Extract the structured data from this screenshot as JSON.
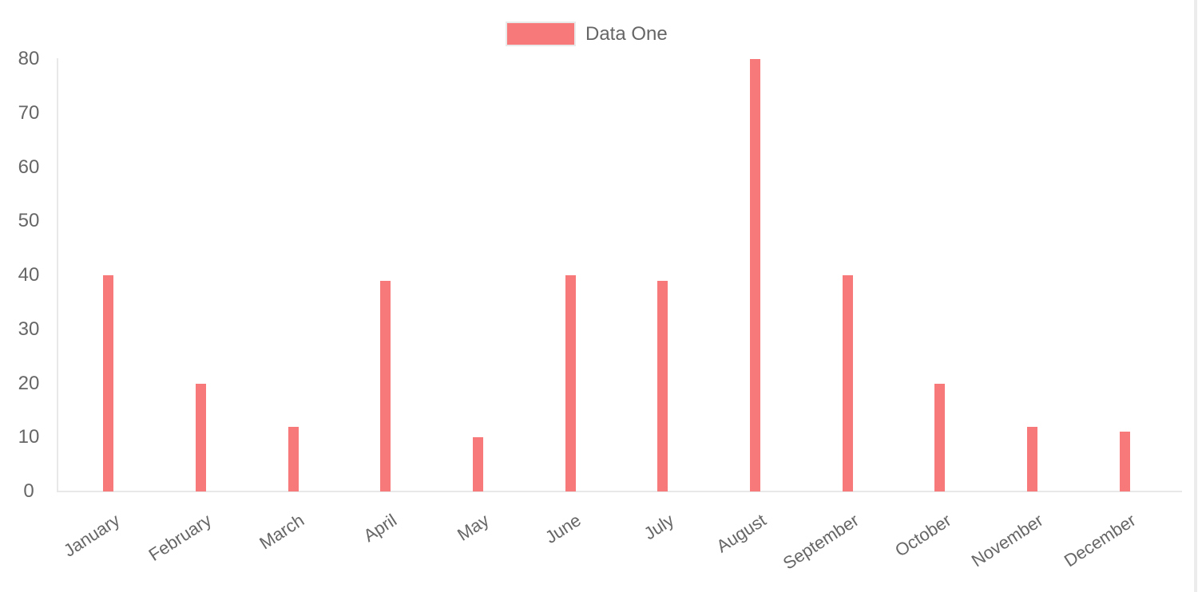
{
  "chart_data": {
    "type": "bar",
    "title": "",
    "categories": [
      "January",
      "February",
      "March",
      "April",
      "May",
      "June",
      "July",
      "August",
      "September",
      "October",
      "November",
      "December"
    ],
    "series": [
      {
        "name": "Data One",
        "color": "#f87979",
        "values": [
          40,
          20,
          12,
          39,
          10,
          40,
          39,
          80,
          40,
          20,
          12,
          11
        ]
      }
    ],
    "ylim": [
      0,
      80
    ],
    "yticks": [
      0,
      10,
      20,
      30,
      40,
      50,
      60,
      70,
      80
    ],
    "grid": false,
    "legend_position": "top",
    "x_tick_rotation_deg": -33
  },
  "legend": {
    "label": "Data One",
    "swatch_color": "#f87979"
  },
  "colors": {
    "bar": "#f87979",
    "axis_line": "#e8e8e8",
    "tick_text": "#666666",
    "right_border": "#ececec"
  }
}
